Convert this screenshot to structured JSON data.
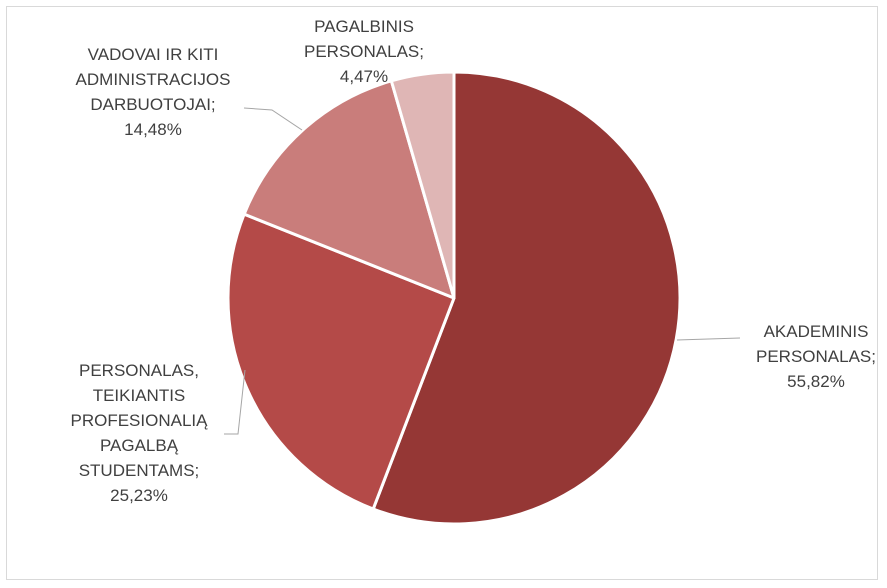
{
  "chart_data": {
    "type": "pie",
    "title": "",
    "start_angle_deg": 0,
    "direction": "clockwise",
    "label_separator": ";",
    "slices": [
      {
        "label_lines": [
          "AKADEMINIS",
          "PERSONALAS;",
          "55,82%"
        ],
        "value": 55.82,
        "color": "#953735"
      },
      {
        "label_lines": [
          "PERSONALAS,",
          "TEIKIANTIS",
          "PROFESIONALIĄ",
          "PAGALBĄ",
          "STUDENTAMS;",
          "25,23%"
        ],
        "value": 25.23,
        "color": "#b44a48"
      },
      {
        "label_lines": [
          "VADOVAI IR KITI",
          "ADMINISTRACIJOS",
          "DARBUOTOJAI;",
          "14,48%"
        ],
        "value": 14.48,
        "color": "#c97d7b"
      },
      {
        "label_lines": [
          "PAGALBINIS",
          "PERSONALAS;",
          "4,47%"
        ],
        "value": 4.47,
        "color": "#dfb6b5"
      }
    ],
    "legend": "none",
    "data_labels": "outside-with-leader-lines"
  }
}
